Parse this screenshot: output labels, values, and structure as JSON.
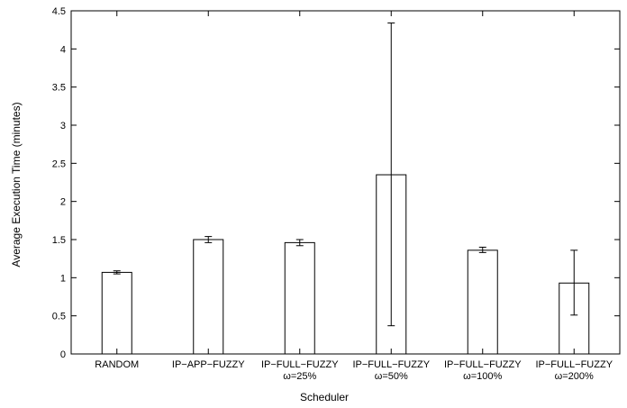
{
  "chart_data": {
    "type": "bar",
    "xlabel": "Scheduler",
    "ylabel": "Average Execution Time (minutes)",
    "ylim": [
      0,
      4.5
    ],
    "yticks": [
      "0",
      "0.5",
      "1",
      "1.5",
      "2",
      "2.5",
      "3",
      "3.5",
      "4",
      "4.5"
    ],
    "categories": [
      [
        "RANDOM"
      ],
      [
        "IP−APP−FUZZY"
      ],
      [
        "IP−FULL−FUZZY",
        "ω=25%"
      ],
      [
        "IP−FULL−FUZZY",
        "ω=50%"
      ],
      [
        "IP−FULL−FUZZY",
        "ω=100%"
      ],
      [
        "IP−FULL−FUZZY",
        "ω=200%"
      ]
    ],
    "values": [
      1.07,
      1.5,
      1.46,
      2.35,
      1.36,
      0.93
    ],
    "error_low": [
      1.05,
      1.46,
      1.42,
      0.37,
      1.33,
      0.51
    ],
    "error_high": [
      1.09,
      1.54,
      1.5,
      4.34,
      1.4,
      1.36
    ],
    "grid": false,
    "bar_fill": "#ffffff",
    "bar_stroke": "#000000"
  }
}
